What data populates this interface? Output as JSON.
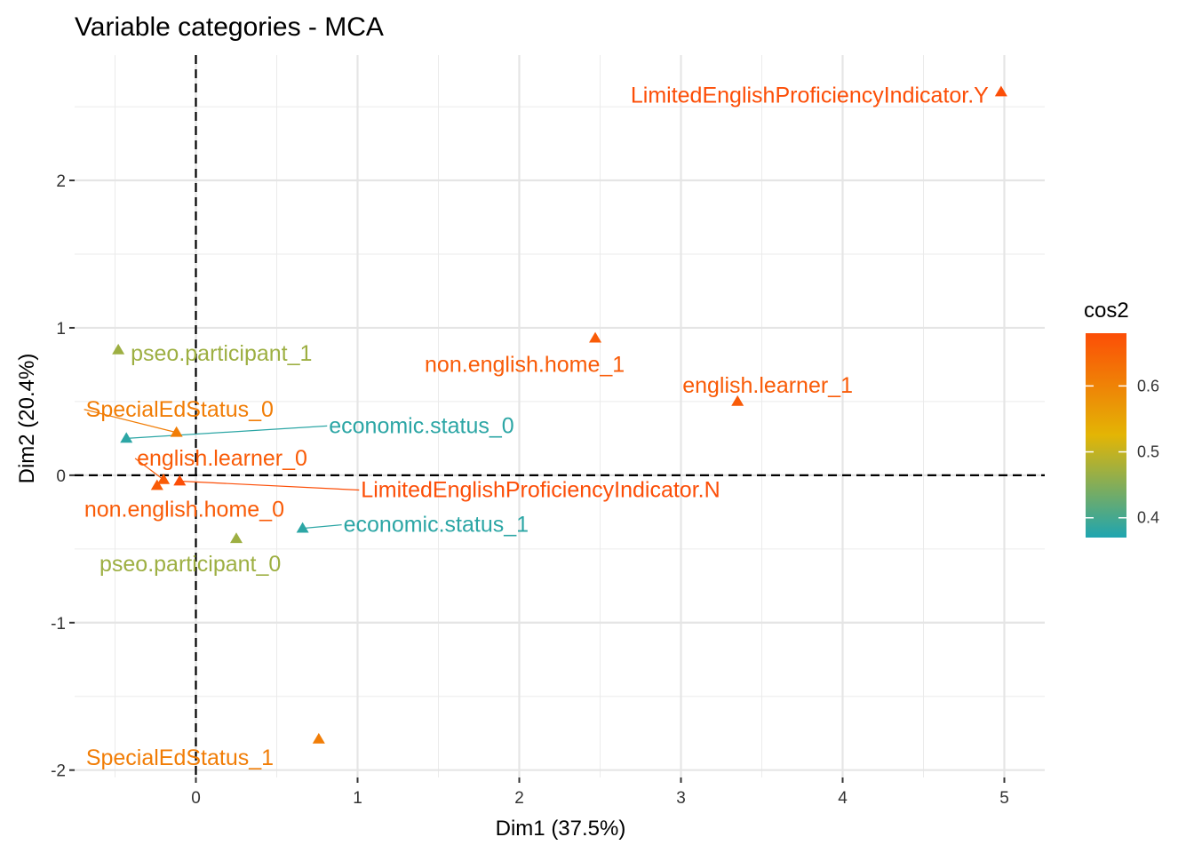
{
  "chart_data": {
    "type": "scatter",
    "title": "Variable categories - MCA",
    "xlabel": "Dim1 (37.5%)",
    "ylabel": "Dim2 (20.4%)",
    "xlim": [
      -0.75,
      5.25
    ],
    "ylim": [
      -2.05,
      2.85
    ],
    "xticks": [
      0,
      1,
      2,
      3,
      4,
      5
    ],
    "yticks": [
      -2,
      -1,
      0,
      1,
      2
    ],
    "grid": true,
    "reference_lines": {
      "x": 0,
      "y": 0,
      "style": "dashed"
    },
    "color_scale": {
      "title": "cos2",
      "min": 0.37,
      "max": 0.68,
      "ticks": [
        0.4,
        0.5,
        0.6
      ],
      "colors": [
        "#1FA5B0",
        "#E3B505",
        "#FC4E07"
      ]
    },
    "points": [
      {
        "label": "LimitedEnglishProficiencyIndicator.Y",
        "x": 4.98,
        "y": 2.6,
        "cos2": 0.68
      },
      {
        "label": "non.english.home_1",
        "x": 2.47,
        "y": 0.93,
        "cos2": 0.66
      },
      {
        "label": "english.learner_1",
        "x": 3.35,
        "y": 0.5,
        "cos2": 0.66
      },
      {
        "label": "pseo.participant_1",
        "x": -0.48,
        "y": 0.85,
        "cos2": 0.47
      },
      {
        "label": "SpecialEdStatus_0",
        "x": -0.12,
        "y": 0.29,
        "cos2": 0.61
      },
      {
        "label": "economic.status_0",
        "x": -0.43,
        "y": 0.25,
        "cos2": 0.38
      },
      {
        "label": "english.learner_0",
        "x": -0.2,
        "y": -0.03,
        "cos2": 0.66
      },
      {
        "label": "LimitedEnglishProficiencyIndicator.N",
        "x": -0.1,
        "y": -0.04,
        "cos2": 0.68
      },
      {
        "label": "non.english.home_0",
        "x": -0.24,
        "y": -0.07,
        "cos2": 0.66
      },
      {
        "label": "economic.status_1",
        "x": 0.66,
        "y": -0.36,
        "cos2": 0.38
      },
      {
        "label": "pseo.participant_0",
        "x": 0.25,
        "y": -0.43,
        "cos2": 0.47
      },
      {
        "label": "SpecialEdStatus_1",
        "x": 0.76,
        "y": -1.79,
        "cos2": 0.61
      }
    ]
  }
}
